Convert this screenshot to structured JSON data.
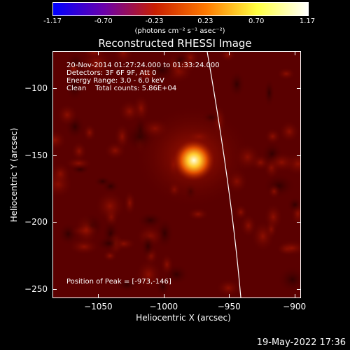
{
  "colorbar": {
    "ticks": [
      "-1.17",
      "-0.70",
      "-0.23",
      "0.23",
      "0.70",
      "1.17"
    ],
    "unit": "(photons cm⁻² s⁻¹ asec⁻²)",
    "colormap": [
      "#0000ff",
      "#6a00aa",
      "#c81e00",
      "#ff7a00",
      "#ffff40",
      "#ffffff"
    ]
  },
  "title": "Reconstructed RHESSI Image",
  "info": {
    "time_range": "20-Nov-2014 01:27:24.000 to 01:33:24.000",
    "detectors": "Detectors: 3F 6F 9F, Att 0",
    "energy": "Energy Range: 3.0 - 6.0 keV",
    "clean": "Clean    Total counts: 5.86E+04",
    "peak": "Position of Peak = [-973,-146]"
  },
  "axes": {
    "xlabel": "Heliocentric X (arcsec)",
    "ylabel": "Heliocentric Y (arcsec)",
    "xticks": [
      "−1050",
      "−1000",
      "−950",
      "−900"
    ],
    "yticks": [
      "−100",
      "−150",
      "−200",
      "−250"
    ],
    "xtick_values": [
      -1050,
      -1000,
      -950,
      -900
    ],
    "ytick_values": [
      -100,
      -150,
      -200,
      -250
    ],
    "xlim": [
      -1085,
      -895
    ],
    "ylim": [
      -257,
      -72
    ]
  },
  "peak_position": [
    -973,
    -146
  ],
  "datestamp": "19-May-2022 17:36"
}
